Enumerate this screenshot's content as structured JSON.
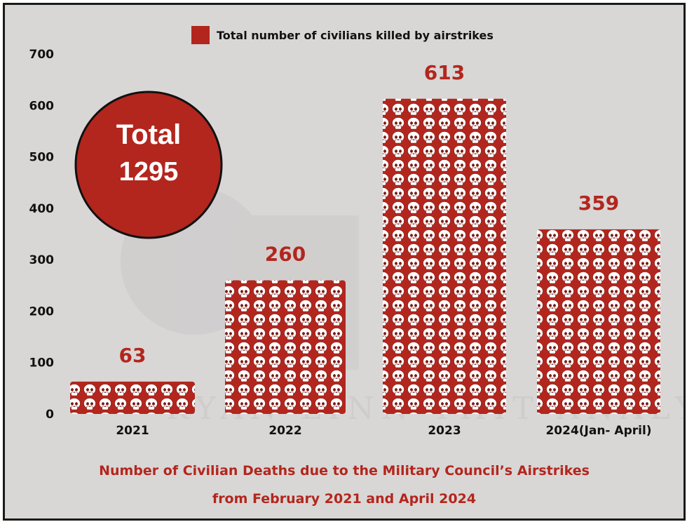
{
  "chart_data": {
    "type": "bar",
    "categories": [
      "2021",
      "2022",
      "2023",
      "2024(Jan- April)"
    ],
    "series": [
      {
        "name": "Total number of civilians killed by airstrikes",
        "values": [
          63,
          260,
          613,
          359
        ]
      }
    ],
    "value_labels": [
      "63",
      "260",
      "613",
      "359"
    ],
    "ylim": [
      0,
      700
    ],
    "yticks": [
      "0",
      "100",
      "200",
      "300",
      "400",
      "500",
      "600",
      "700"
    ],
    "grid": false,
    "legend_position": "top-center",
    "caption_line1": "Number of Civilian Deaths due to the Military Council’s Airstrikes",
    "caption_line2": "from February 2021 and April 2024",
    "total": {
      "label": "Total",
      "value": "1295"
    },
    "watermark": "KYAN LINN THIT ANALYTICA"
  },
  "colors": {
    "bar": "#b3261e",
    "background": "#d9d7d5",
    "skull": "#ffffff"
  },
  "icons": {
    "bar_fill": "skull-icon"
  }
}
